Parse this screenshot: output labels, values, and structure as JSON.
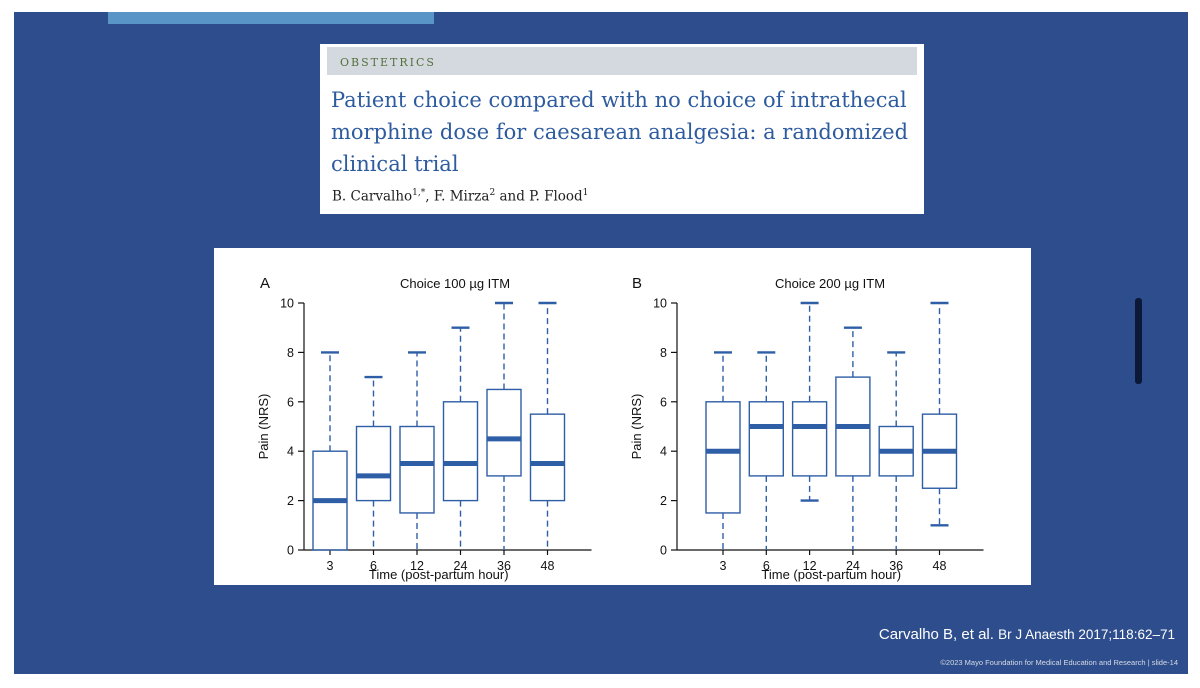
{
  "paper": {
    "section": "OBSTETRICS",
    "title": "Patient choice compared with no choice of intrathecal morphine dose for caesarean analgesia: a randomized clinical trial",
    "authors": [
      {
        "name": "B. Carvalho",
        "sup": "1,*"
      },
      {
        "name": "F. Mirza",
        "sup": "2"
      },
      {
        "name": "P. Flood",
        "sup": "1"
      }
    ],
    "author_sep": ", ",
    "author_and": " and "
  },
  "citation": {
    "authors": "Carvalho B, et al.",
    "journal": "Br J Anaesth 2017;118:62–71"
  },
  "footer": {
    "text": "©2023 Mayo Foundation for Medical Education and Research  |  slide-14"
  },
  "colors": {
    "box": "#2e5ea6",
    "slide_bg": "#2e4d8c",
    "title_blue": "#2d5b9e"
  },
  "chart_data": [
    {
      "type": "boxplot",
      "panel": "A",
      "title": "Choice 100 µg ITM",
      "xlabel": "Time (post-partum hour)",
      "ylabel": "Pain (NRS)",
      "ylim": [
        0,
        10
      ],
      "yticks": [
        0,
        2,
        4,
        6,
        8,
        10
      ],
      "categories": [
        "3",
        "6",
        "12",
        "24",
        "36",
        "48"
      ],
      "boxes": [
        {
          "min": 0,
          "q1": 0,
          "median": 2,
          "q3": 4,
          "max": 8
        },
        {
          "min": 0,
          "q1": 2,
          "median": 3,
          "q3": 5,
          "max": 7
        },
        {
          "min": 0,
          "q1": 1.5,
          "median": 3.5,
          "q3": 5,
          "max": 8
        },
        {
          "min": 0,
          "q1": 2,
          "median": 3.5,
          "q3": 6,
          "max": 9
        },
        {
          "min": 0,
          "q1": 3,
          "median": 4.5,
          "q3": 6.5,
          "max": 10
        },
        {
          "min": 0,
          "q1": 2,
          "median": 3.5,
          "q3": 5.5,
          "max": 10
        }
      ]
    },
    {
      "type": "boxplot",
      "panel": "B",
      "title": "Choice 200 µg ITM",
      "xlabel": "Time (post-partum hour)",
      "ylabel": "Pain (NRS)",
      "ylim": [
        0,
        10
      ],
      "yticks": [
        0,
        2,
        4,
        6,
        8,
        10
      ],
      "categories": [
        "3",
        "6",
        "12",
        "24",
        "36",
        "48"
      ],
      "boxes": [
        {
          "min": 0,
          "q1": 1.5,
          "median": 4,
          "q3": 6,
          "max": 8
        },
        {
          "min": 0,
          "q1": 3,
          "median": 5,
          "q3": 6,
          "max": 8
        },
        {
          "min": 2,
          "q1": 3,
          "median": 5,
          "q3": 6,
          "max": 10
        },
        {
          "min": 0,
          "q1": 3,
          "median": 5,
          "q3": 7,
          "max": 9
        },
        {
          "min": 0,
          "q1": 3,
          "median": 4,
          "q3": 5,
          "max": 8
        },
        {
          "min": 1,
          "q1": 2.5,
          "median": 4,
          "q3": 5.5,
          "max": 10
        }
      ]
    }
  ]
}
